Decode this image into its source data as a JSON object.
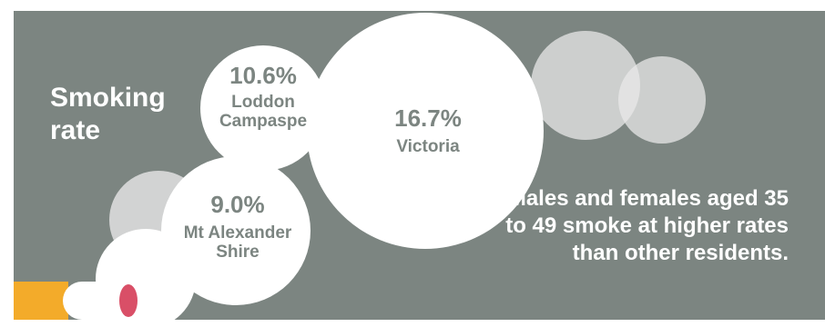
{
  "title": "Smoking rate",
  "bubbles": [
    {
      "value": "10.6%",
      "label": "Loddon Campaspe"
    },
    {
      "value": "16.7%",
      "label": "Victoria"
    },
    {
      "value": "9.0%",
      "label": "Mt Alexander Shire"
    }
  ],
  "note": "Males and females aged 35 to 49 smoke at higher rates than other residents.",
  "colors": {
    "panel": "#7c8581",
    "bubble": "#ffffff",
    "faded_bubble": "#dcdcdc",
    "cigarette_filter": "#f3ab2a",
    "cigarette_tip": "#d94f67"
  },
  "icons": [
    "cigarette-icon"
  ]
}
